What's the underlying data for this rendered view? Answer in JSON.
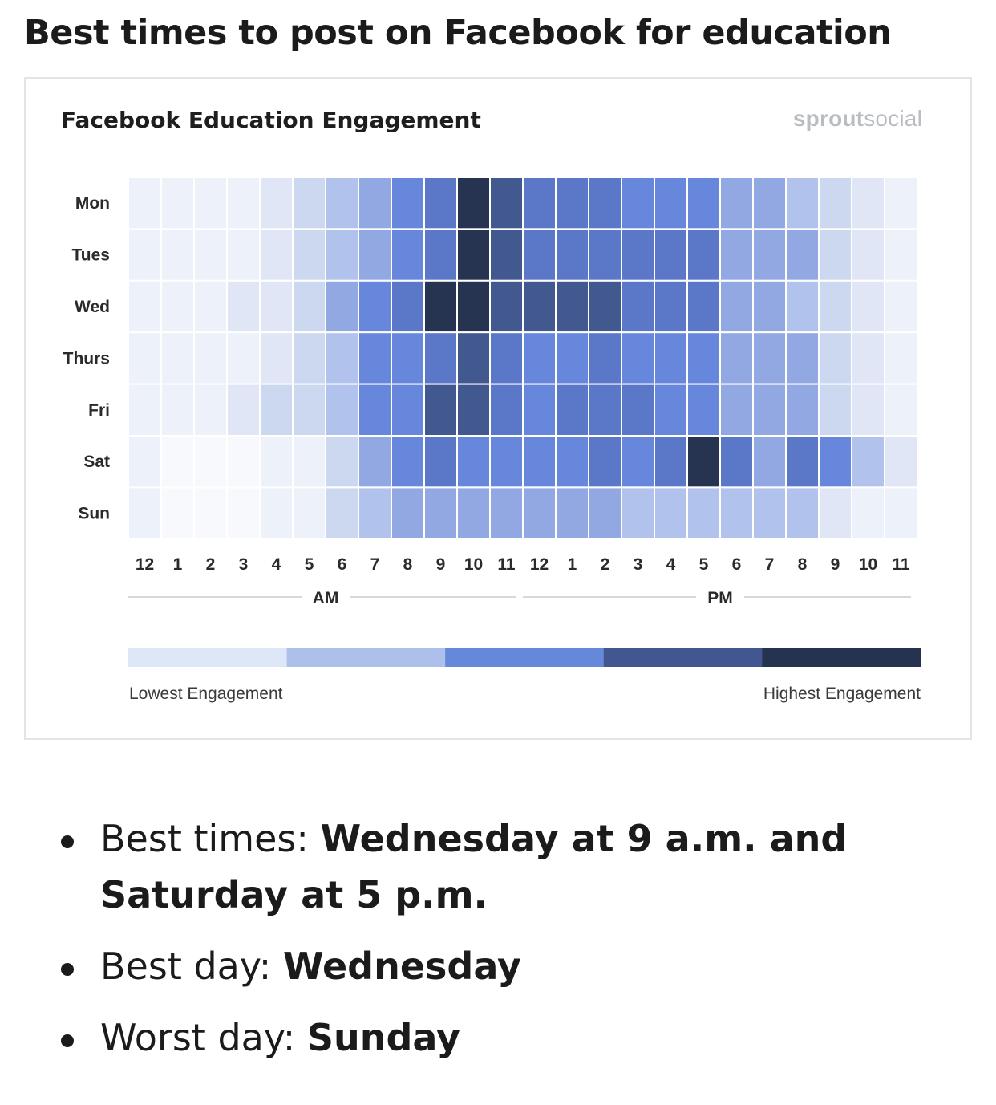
{
  "page_title": "Best times to post on Facebook for education",
  "brand": {
    "bold_part": "sprout",
    "light_part": "social"
  },
  "summary": [
    {
      "key": "Best times: ",
      "value": "Wednesday at 9 a.m. and Saturday at 5 p.m."
    },
    {
      "key": "Best day: ",
      "value": "Wednesday"
    },
    {
      "key": "Worst day: ",
      "value": "Sunday"
    }
  ],
  "chart_data": {
    "type": "heatmap",
    "title": "Facebook Education Engagement",
    "rows": [
      "Mon",
      "Tues",
      "Wed",
      "Thurs",
      "Fri",
      "Sat",
      "Sun"
    ],
    "columns": [
      "12",
      "1",
      "2",
      "3",
      "4",
      "5",
      "6",
      "7",
      "8",
      "9",
      "10",
      "11",
      "12",
      "1",
      "2",
      "3",
      "4",
      "5",
      "6",
      "7",
      "8",
      "9",
      "10",
      "11"
    ],
    "periods": [
      {
        "label": "AM",
        "from": 0,
        "to": 11
      },
      {
        "label": "PM",
        "from": 12,
        "to": 23
      }
    ],
    "scale": [
      0,
      9
    ],
    "values": [
      [
        1,
        1,
        1,
        1,
        2,
        3,
        4,
        5,
        6,
        7,
        9,
        8,
        7,
        7,
        7,
        6,
        6,
        6,
        5,
        5,
        4,
        3,
        2,
        1
      ],
      [
        1,
        1,
        1,
        1,
        2,
        3,
        4,
        5,
        6,
        7,
        9,
        8,
        7,
        7,
        7,
        7,
        7,
        7,
        5,
        5,
        5,
        3,
        2,
        1
      ],
      [
        1,
        1,
        1,
        2,
        2,
        3,
        5,
        6,
        7,
        9,
        9,
        8,
        8,
        8,
        8,
        7,
        7,
        7,
        5,
        5,
        4,
        3,
        2,
        1
      ],
      [
        1,
        1,
        1,
        1,
        2,
        3,
        4,
        6,
        6,
        7,
        8,
        7,
        6,
        6,
        7,
        6,
        6,
        6,
        5,
        5,
        5,
        3,
        2,
        1
      ],
      [
        1,
        1,
        1,
        2,
        3,
        3,
        4,
        6,
        6,
        8,
        8,
        7,
        6,
        7,
        7,
        7,
        6,
        6,
        5,
        5,
        5,
        3,
        2,
        1
      ],
      [
        1,
        0,
        0,
        0,
        1,
        1,
        3,
        5,
        6,
        7,
        6,
        6,
        6,
        6,
        7,
        6,
        7,
        9,
        7,
        5,
        7,
        6,
        4,
        2
      ],
      [
        1,
        0,
        0,
        0,
        1,
        1,
        3,
        4,
        5,
        5,
        5,
        5,
        5,
        5,
        5,
        4,
        4,
        4,
        4,
        4,
        4,
        2,
        1,
        1
      ]
    ],
    "color_scale": [
      "#f7f9fd",
      "#edf1fa",
      "#e0e6f6",
      "#ccd8f0",
      "#b1c2ec",
      "#91a8e2",
      "#6787dc",
      "#5a78c7",
      "#41598f",
      "#263351"
    ],
    "legend": {
      "colors": [
        "#dde7f8",
        "#adc0ec",
        "#6688da",
        "#42578f",
        "#253250"
      ],
      "low_label": "Lowest Engagement",
      "high_label": "Highest Engagement"
    }
  }
}
